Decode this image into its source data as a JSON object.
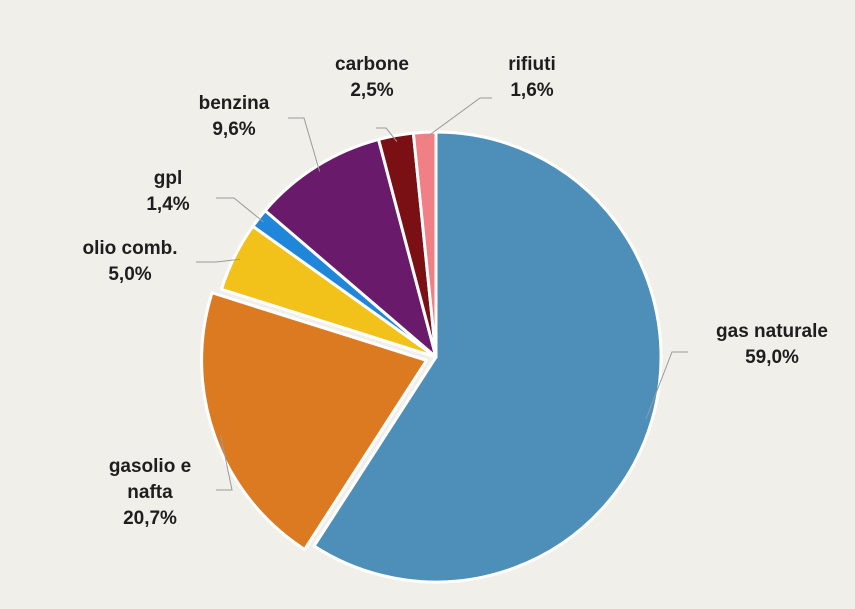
{
  "chart_data": {
    "type": "pie",
    "title": "",
    "slices": [
      {
        "label": "gas naturale",
        "value": 59.0,
        "value_label": "59,0%",
        "color": "#4e8fba"
      },
      {
        "label": "gasolio e nafta",
        "value": 20.7,
        "value_label": "20,7%",
        "color": "#dc7a22"
      },
      {
        "label": "olio comb.",
        "value": 5.0,
        "value_label": "5,0%",
        "color": "#f2c21b"
      },
      {
        "label": "gpl",
        "value": 1.4,
        "value_label": "1,4%",
        "color": "#1f86d9"
      },
      {
        "label": "benzina",
        "value": 9.6,
        "value_label": "9,6%",
        "color": "#6a1a6a"
      },
      {
        "label": "carbone",
        "value": 2.5,
        "value_label": "2,5%",
        "color": "#7a0f14"
      },
      {
        "label": "rifiuti",
        "value": 1.6,
        "value_label": "1,6%",
        "color": "#f07f86"
      }
    ],
    "exploded_slice": "gasolio e nafta",
    "legend": "none",
    "labels_placement": "outside, with leader lines"
  }
}
